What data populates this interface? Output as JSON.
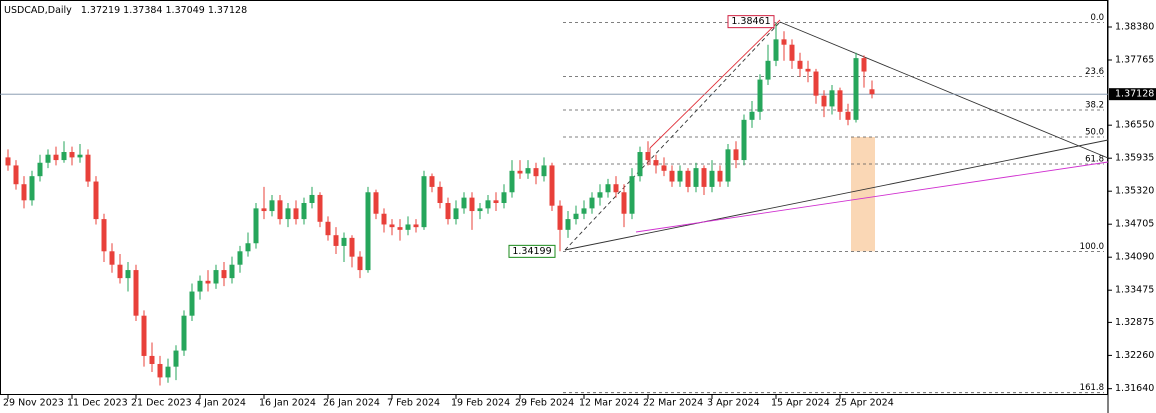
{
  "chart_data": {
    "type": "candlestick",
    "title": "USDCAD,Daily",
    "up_color": "#26a65b",
    "down_color": "#e8403a",
    "categories": [
      "29 Nov 2023",
      null,
      null,
      null,
      null,
      null,
      null,
      null,
      "11 Dec 2023",
      null,
      null,
      null,
      null,
      null,
      null,
      null,
      "21 Dec 2023",
      null,
      null,
      null,
      null,
      null,
      null,
      null,
      "4 Jan 2024",
      null,
      null,
      null,
      null,
      null,
      null,
      null,
      "16 Jan 2024",
      null,
      null,
      null,
      null,
      null,
      null,
      null,
      "26 Jan 2024",
      null,
      null,
      null,
      null,
      null,
      null,
      null,
      "7 Feb 2024",
      null,
      null,
      null,
      null,
      null,
      null,
      null,
      "19 Feb 2024",
      null,
      null,
      null,
      null,
      null,
      null,
      null,
      "29 Feb 2024",
      null,
      null,
      null,
      null,
      null,
      null,
      null,
      "12 Mar 2024",
      null,
      null,
      null,
      null,
      null,
      null,
      null,
      "22 Mar 2024",
      null,
      null,
      null,
      null,
      null,
      null,
      null,
      "3 Apr 2024",
      null,
      null,
      null,
      null,
      null,
      null,
      null,
      "15 Apr 2024",
      null,
      null,
      null,
      null,
      null,
      null,
      null,
      "25 Apr 2024",
      null,
      null,
      null,
      null
    ],
    "open": [
      1.3595,
      1.358,
      1.3545,
      1.3515,
      1.356,
      1.3585,
      1.36,
      1.359,
      1.3605,
      1.3595,
      1.36,
      1.355,
      1.348,
      1.342,
      1.3395,
      1.337,
      1.3385,
      1.33,
      1.3225,
      1.321,
      1.3185,
      1.3205,
      1.3235,
      1.33,
      1.3345,
      1.3365,
      1.336,
      1.3385,
      1.337,
      1.3395,
      1.342,
      1.3435,
      1.35,
      1.3495,
      1.3515,
      1.348,
      1.35,
      1.348,
      1.351,
      1.3525,
      1.3475,
      1.345,
      1.343,
      1.3445,
      1.341,
      1.3385,
      1.353,
      1.349,
      1.347,
      1.3465,
      1.346,
      1.347,
      1.3465,
      1.356,
      1.354,
      1.351,
      1.348,
      1.35,
      1.352,
      1.3495,
      1.35,
      1.3515,
      1.351,
      1.353,
      1.357,
      1.3565,
      1.3575,
      1.356,
      1.358,
      1.3505,
      1.346,
      1.348,
      1.349,
      1.35,
      1.352,
      1.353,
      1.3545,
      1.353,
      1.349,
      1.356,
      1.3605,
      1.359,
      1.358,
      1.357,
      1.355,
      1.357,
      1.354,
      1.3575,
      1.354,
      1.357,
      1.355,
      1.361,
      1.359,
      1.3665,
      1.368,
      1.374,
      1.3775,
      1.3815,
      1.3805,
      1.3775,
      1.376,
      1.3755,
      1.371,
      1.369,
      1.372,
      1.368,
      1.3665,
      1.378,
      1.37219
    ],
    "high": [
      1.361,
      1.359,
      1.356,
      1.357,
      1.36,
      1.361,
      1.3615,
      1.3625,
      1.3615,
      1.362,
      1.361,
      1.356,
      1.349,
      1.3435,
      1.3415,
      1.34,
      1.3395,
      1.331,
      1.325,
      1.3225,
      1.322,
      1.3245,
      1.331,
      1.336,
      1.3375,
      1.3385,
      1.3395,
      1.34,
      1.341,
      1.343,
      1.3455,
      1.351,
      1.354,
      1.3525,
      1.3525,
      1.351,
      1.3515,
      1.352,
      1.354,
      1.353,
      1.3485,
      1.3465,
      1.3455,
      1.345,
      1.342,
      1.354,
      1.3535,
      1.35,
      1.348,
      1.348,
      1.3485,
      1.348,
      1.357,
      1.3565,
      1.355,
      1.352,
      1.3515,
      1.353,
      1.353,
      1.351,
      1.3525,
      1.353,
      1.3545,
      1.359,
      1.359,
      1.359,
      1.3585,
      1.3595,
      1.3585,
      1.3515,
      1.3495,
      1.3505,
      1.3515,
      1.353,
      1.3545,
      1.3555,
      1.356,
      1.3545,
      1.3575,
      1.3615,
      1.3625,
      1.36,
      1.3595,
      1.358,
      1.358,
      1.3575,
      1.3585,
      1.358,
      1.359,
      1.358,
      1.362,
      1.3625,
      1.3675,
      1.37,
      1.375,
      1.3805,
      1.3846,
      1.383,
      1.3815,
      1.379,
      1.3775,
      1.376,
      1.372,
      1.373,
      1.3725,
      1.3695,
      1.379,
      1.3785,
      1.37384
    ],
    "low": [
      1.357,
      1.3535,
      1.35,
      1.3505,
      1.355,
      1.3575,
      1.358,
      1.3585,
      1.358,
      1.3585,
      1.354,
      1.347,
      1.34,
      1.338,
      1.336,
      1.3345,
      1.329,
      1.3205,
      1.3195,
      1.317,
      1.3175,
      1.318,
      1.3225,
      1.329,
      1.333,
      1.3345,
      1.335,
      1.3355,
      1.336,
      1.338,
      1.341,
      1.3425,
      1.348,
      1.3485,
      1.347,
      1.3465,
      1.347,
      1.347,
      1.35,
      1.3465,
      1.344,
      1.3415,
      1.34,
      1.339,
      1.337,
      1.338,
      1.348,
      1.3455,
      1.345,
      1.344,
      1.345,
      1.3455,
      1.346,
      1.353,
      1.35,
      1.347,
      1.347,
      1.349,
      1.346,
      1.348,
      1.349,
      1.3495,
      1.35,
      1.352,
      1.3555,
      1.3555,
      1.3545,
      1.355,
      1.3495,
      1.342,
      1.3445,
      1.347,
      1.348,
      1.349,
      1.3505,
      1.352,
      1.352,
      1.3465,
      1.348,
      1.355,
      1.358,
      1.3565,
      1.356,
      1.354,
      1.354,
      1.353,
      1.353,
      1.3525,
      1.353,
      1.354,
      1.354,
      1.3575,
      1.358,
      1.365,
      1.3665,
      1.373,
      1.3765,
      1.3775,
      1.376,
      1.3745,
      1.3735,
      1.3695,
      1.367,
      1.3675,
      1.3665,
      1.3655,
      1.366,
      1.3725,
      1.37049
    ],
    "close": [
      1.358,
      1.3545,
      1.3515,
      1.356,
      1.3585,
      1.36,
      1.359,
      1.3605,
      1.3595,
      1.36,
      1.355,
      1.348,
      1.342,
      1.3395,
      1.337,
      1.3385,
      1.33,
      1.3225,
      1.321,
      1.3185,
      1.3205,
      1.3235,
      1.33,
      1.3345,
      1.3365,
      1.336,
      1.3385,
      1.337,
      1.3395,
      1.342,
      1.3435,
      1.35,
      1.3495,
      1.3515,
      1.348,
      1.35,
      1.348,
      1.351,
      1.3525,
      1.3475,
      1.345,
      1.343,
      1.3445,
      1.341,
      1.3385,
      1.353,
      1.349,
      1.347,
      1.3465,
      1.346,
      1.347,
      1.3465,
      1.356,
      1.354,
      1.351,
      1.348,
      1.35,
      1.352,
      1.3495,
      1.35,
      1.3515,
      1.351,
      1.353,
      1.357,
      1.3565,
      1.3575,
      1.356,
      1.358,
      1.3505,
      1.346,
      1.348,
      1.349,
      1.35,
      1.352,
      1.353,
      1.3545,
      1.353,
      1.349,
      1.356,
      1.3605,
      1.359,
      1.358,
      1.357,
      1.355,
      1.357,
      1.354,
      1.3575,
      1.354,
      1.357,
      1.355,
      1.361,
      1.359,
      1.3665,
      1.368,
      1.374,
      1.3775,
      1.3815,
      1.3805,
      1.3775,
      1.376,
      1.3755,
      1.371,
      1.369,
      1.372,
      1.368,
      1.3665,
      1.378,
      1.3755,
      1.37128
    ],
    "ylim": [
      1.31522,
      1.38883
    ],
    "yticks": [
      {
        "value": 1.3838,
        "label": "1.38380"
      },
      1.37765,
      {
        "value": 1.3655,
        "label": "1.36550"
      },
      1.35935,
      {
        "value": 1.3532,
        "label": "1.35320"
      },
      1.34705,
      {
        "value": 1.3409,
        "label": "1.34090"
      },
      1.33475,
      1.32875,
      {
        "value": 1.3226,
        "label": "1.32260"
      },
      {
        "value": 1.3164,
        "label": "1.31640"
      }
    ],
    "fibonacci": {
      "high": 1.38461,
      "low": 1.34199,
      "levels": [
        {
          "value": 0,
          "label": "0.0"
        },
        {
          "value": 23.6,
          "label": "23.6"
        },
        {
          "value": 38.2,
          "label": "38.2"
        },
        {
          "value": 50,
          "label": "50.0"
        },
        {
          "value": 61.8,
          "label": "61.8"
        },
        {
          "value": 100,
          "label": "100.0"
        },
        {
          "value": 161.8,
          "label": "161.8"
        }
      ]
    }
  }
}
